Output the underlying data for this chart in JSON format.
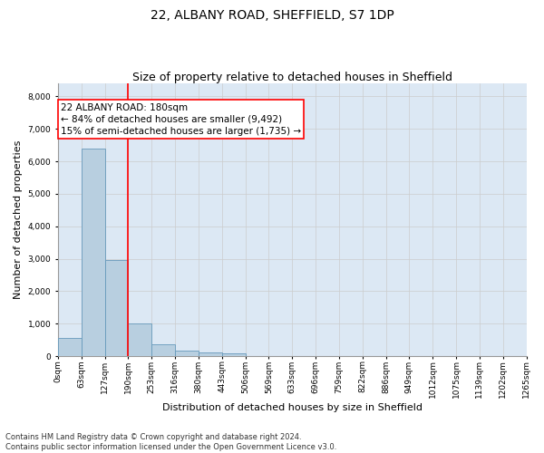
{
  "title": "22, ALBANY ROAD, SHEFFIELD, S7 1DP",
  "subtitle": "Size of property relative to detached houses in Sheffield",
  "xlabel": "Distribution of detached houses by size in Sheffield",
  "ylabel": "Number of detached properties",
  "footer_line1": "Contains HM Land Registry data © Crown copyright and database right 2024.",
  "footer_line2": "Contains public sector information licensed under the Open Government Licence v3.0.",
  "bar_bins": [
    "0sqm",
    "63sqm",
    "127sqm",
    "190sqm",
    "253sqm",
    "316sqm",
    "380sqm",
    "443sqm",
    "506sqm",
    "569sqm",
    "633sqm",
    "696sqm",
    "759sqm",
    "822sqm",
    "886sqm",
    "949sqm",
    "1012sqm",
    "1075sqm",
    "1139sqm",
    "1202sqm",
    "1265sqm"
  ],
  "bar_values": [
    560,
    6400,
    2950,
    1000,
    360,
    180,
    110,
    80,
    0,
    0,
    0,
    0,
    0,
    0,
    0,
    0,
    0,
    0,
    0,
    0
  ],
  "bar_color": "#b8cfe0",
  "bar_edgecolor": "#6699bb",
  "property_line_color": "red",
  "annotation_text": "22 ALBANY ROAD: 180sqm\n← 84% of detached houses are smaller (9,492)\n15% of semi-detached houses are larger (1,735) →",
  "annotation_box_facecolor": "white",
  "annotation_box_edgecolor": "red",
  "ylim": [
    0,
    8400
  ],
  "yticks": [
    0,
    1000,
    2000,
    3000,
    4000,
    5000,
    6000,
    7000,
    8000
  ],
  "grid_color": "#cccccc",
  "axes_background_color": "#dce8f4",
  "fig_background_color": "white",
  "title_fontsize": 10,
  "subtitle_fontsize": 9,
  "xlabel_fontsize": 8,
  "ylabel_fontsize": 8,
  "tick_fontsize": 6.5,
  "annotation_fontsize": 7.5,
  "footer_fontsize": 6
}
